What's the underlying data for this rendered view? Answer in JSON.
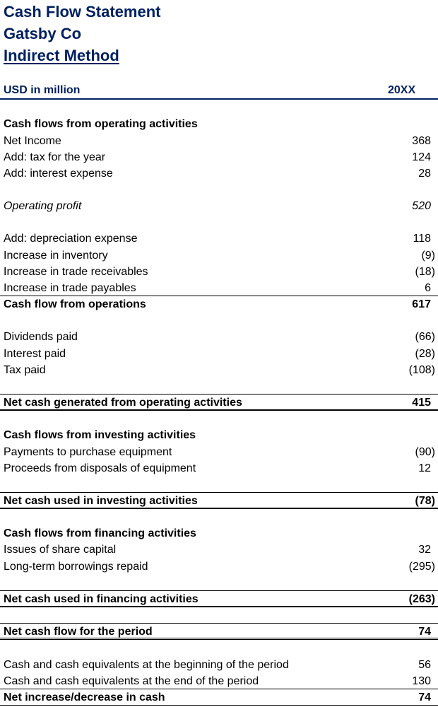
{
  "header": {
    "title": "Cash Flow Statement",
    "company": "Gatsby Co",
    "method": "Indirect Method",
    "units": "USD in million",
    "period": "20XX"
  },
  "colors": {
    "header_navy": "#002060"
  },
  "rows": [
    {
      "label": "Cash flows from operating activities",
      "value": "",
      "style": "bold"
    },
    {
      "label": "Net Income",
      "value": "368"
    },
    {
      "label": "Add: tax for the year",
      "value": "124"
    },
    {
      "label": "Add: interest expense",
      "value": "28"
    },
    {
      "label": "",
      "value": ""
    },
    {
      "label": "Operating profit",
      "value": "520",
      "style": "italic"
    },
    {
      "label": "",
      "value": ""
    },
    {
      "label": "Add: depreciation expense",
      "value": "118"
    },
    {
      "label": "Increase in inventory",
      "value": "(9)"
    },
    {
      "label": "Increase in trade receivables",
      "value": "(18)"
    },
    {
      "label": "Increase in trade payables",
      "value": "6",
      "border": "thin"
    },
    {
      "label": "Cash flow from operations",
      "value": "617",
      "style": "bold"
    },
    {
      "label": "",
      "value": ""
    },
    {
      "label": "Dividends paid",
      "value": "(66)"
    },
    {
      "label": "Interest paid",
      "value": "(28)"
    },
    {
      "label": "Tax paid",
      "value": "(108)"
    },
    {
      "label": "",
      "value": "",
      "border": "thin"
    },
    {
      "label": "Net cash generated from operating activities",
      "value": "415",
      "style": "bold",
      "border": "thick"
    },
    {
      "label": "",
      "value": ""
    },
    {
      "label": "Cash flows from investing activities",
      "value": "",
      "style": "bold"
    },
    {
      "label": "Payments to purchase equipment",
      "value": "(90)"
    },
    {
      "label": "Proceeds from disposals of equipment",
      "value": "12"
    },
    {
      "label": "",
      "value": "",
      "border": "thin"
    },
    {
      "label": "Net cash used in investing activities",
      "value": "(78)",
      "style": "bold",
      "border": "thick"
    },
    {
      "label": "",
      "value": ""
    },
    {
      "label": "Cash flows from financing activities",
      "value": "",
      "style": "bold"
    },
    {
      "label": "Issues of share capital",
      "value": "32"
    },
    {
      "label": "Long-term borrowings repaid",
      "value": "(295)"
    },
    {
      "label": "",
      "value": "",
      "border": "thin"
    },
    {
      "label": "Net cash used in financing activities",
      "value": "(263)",
      "style": "bold",
      "border": "thick"
    },
    {
      "label": "",
      "value": "",
      "border": "thin"
    },
    {
      "label": "Net cash flow for the period",
      "value": "74",
      "style": "bold",
      "border": "double"
    },
    {
      "label": "",
      "value": ""
    },
    {
      "label": "Cash and cash equivalents at the beginning of the period",
      "value": "56"
    },
    {
      "label": "Cash and cash equivalents at the end of the period",
      "value": "130",
      "border": "thin"
    },
    {
      "label": "Net increase/decrease in cash",
      "value": "74",
      "style": "bold",
      "border": "thin"
    }
  ]
}
